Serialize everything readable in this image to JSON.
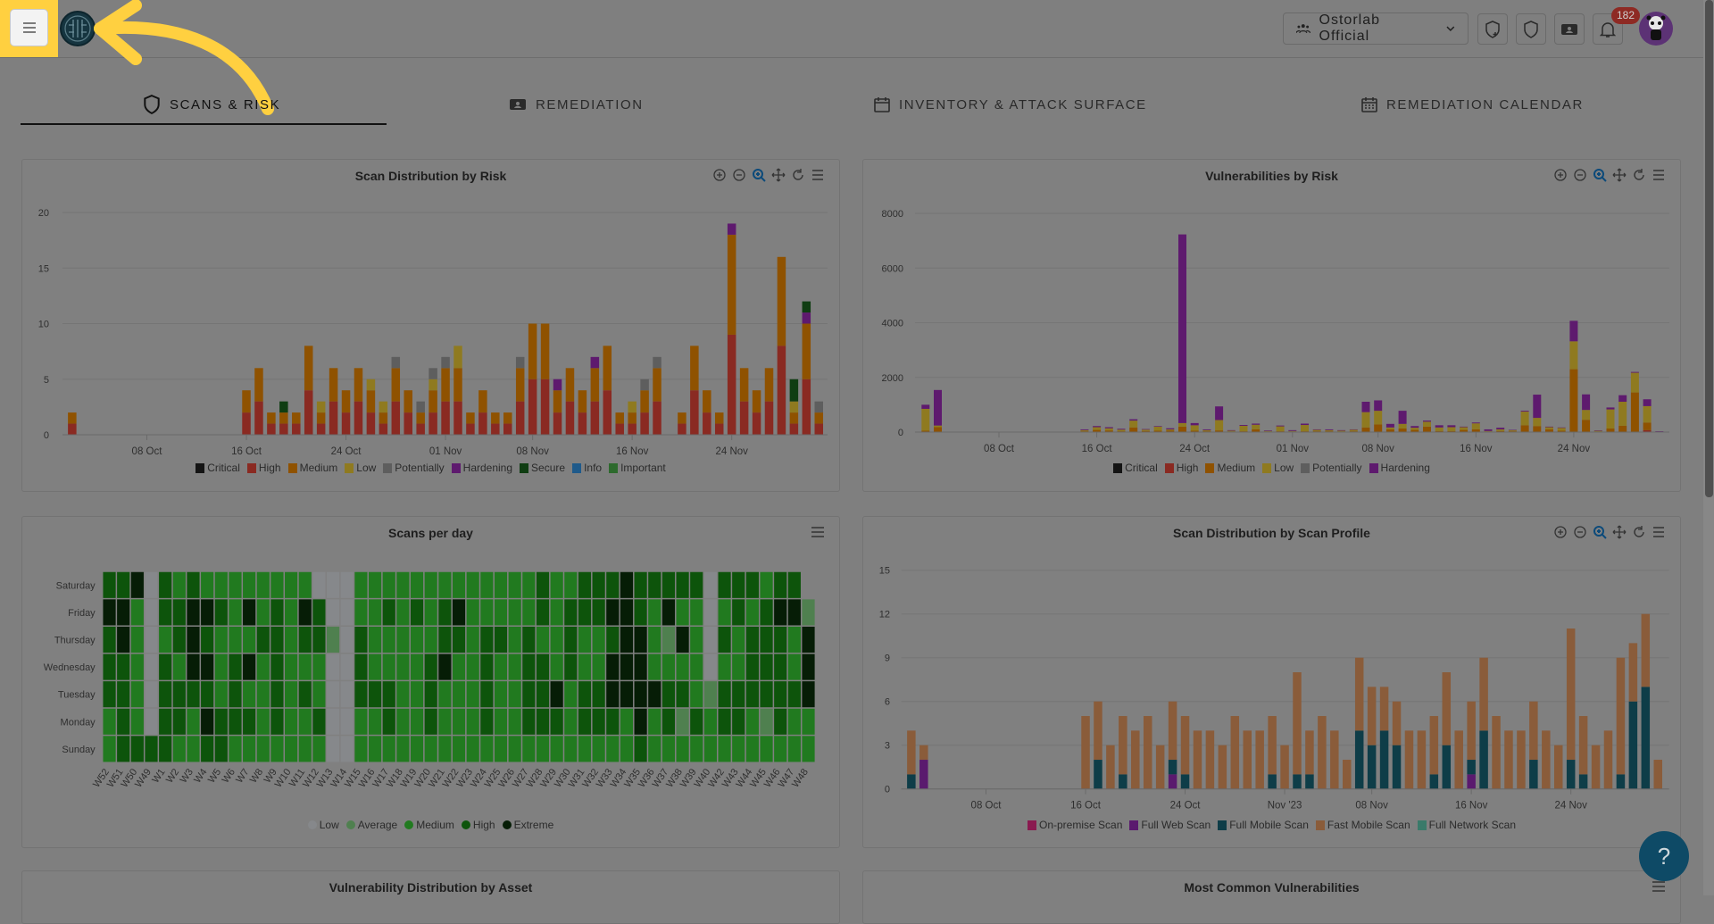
{
  "header": {
    "org_name": "Ostorlab Official",
    "notification_count": "182",
    "icons": [
      "menu-icon",
      "org-icon",
      "chevron-down-icon",
      "shield-plus-icon",
      "shield-icon",
      "ticket-icon",
      "bell-icon"
    ]
  },
  "tabs": [
    {
      "label": "SCANS & RISK",
      "icon": "shield-icon",
      "active": true
    },
    {
      "label": "REMEDIATION",
      "icon": "ticket-icon",
      "active": false
    },
    {
      "label": "INVENTORY & ATTACK SURFACE",
      "icon": "calendar-icon",
      "active": false
    },
    {
      "label": "REMEDIATION CALENDAR",
      "icon": "calendar-grid-icon",
      "active": false
    }
  ],
  "help_label": "?",
  "bottom_cards": [
    {
      "title": "Vulnerability Distribution by Asset"
    },
    {
      "title": "Most Common Vulnerabilities"
    }
  ],
  "chart_data": [
    {
      "type": "bar",
      "stacked": true,
      "title": "Scan Distribution by Risk",
      "ylim": [
        0,
        20
      ],
      "yticks": [
        0,
        5,
        10,
        15,
        20
      ],
      "xticks": [
        {
          "label": "08 Oct",
          "date": "10-08"
        },
        {
          "label": "16 Oct",
          "date": "10-16"
        },
        {
          "label": "24 Oct",
          "date": "10-24"
        },
        {
          "label": "01 Nov",
          "date": "11-01"
        },
        {
          "label": "08 Nov",
          "date": "11-08"
        },
        {
          "label": "16 Nov",
          "date": "11-16"
        },
        {
          "label": "24 Nov",
          "date": "11-24"
        }
      ],
      "dates": [
        "10-02",
        "10-16",
        "10-17",
        "10-18",
        "10-19",
        "10-20",
        "10-21",
        "10-22",
        "10-23",
        "10-24",
        "10-25",
        "10-26",
        "10-27",
        "10-28",
        "10-29",
        "10-30",
        "10-31",
        "11-01",
        "11-02",
        "11-03",
        "11-04",
        "11-05",
        "11-06",
        "11-07",
        "11-08",
        "11-09",
        "11-10",
        "11-11",
        "11-12",
        "11-13",
        "11-14",
        "11-15",
        "11-16",
        "11-17",
        "11-18",
        "11-19",
        "11-20",
        "11-21",
        "11-22",
        "11-23",
        "11-24",
        "11-25",
        "11-26",
        "11-27",
        "11-28",
        "11-29",
        "11-30",
        "12-01"
      ],
      "series": [
        {
          "name": "Critical",
          "color": "#141414"
        },
        {
          "name": "High",
          "color": "#8a2a22",
          "values": [
            1,
            2,
            3,
            1,
            1,
            1,
            4,
            1,
            3,
            2,
            3,
            2,
            1,
            3,
            2,
            1,
            2,
            3,
            3,
            1,
            2,
            1,
            1,
            3,
            5,
            5,
            2,
            3,
            2,
            3,
            4,
            1,
            1,
            2,
            3,
            0,
            1,
            4,
            2,
            1,
            9,
            3,
            2,
            3,
            8,
            1,
            5,
            1
          ]
        },
        {
          "name": "Medium",
          "color": "#8f5200",
          "values": [
            1,
            2,
            3,
            1,
            1,
            1,
            4,
            1,
            3,
            2,
            3,
            2,
            1,
            3,
            2,
            1,
            2,
            3,
            3,
            1,
            2,
            1,
            1,
            3,
            5,
            5,
            2,
            3,
            2,
            3,
            4,
            1,
            1,
            2,
            3,
            0,
            1,
            4,
            2,
            1,
            9,
            3,
            2,
            3,
            8,
            1,
            5,
            1
          ]
        },
        {
          "name": "Low",
          "color": "#8f7a20",
          "values": [
            0,
            0,
            0,
            0,
            0,
            0,
            0,
            1,
            0,
            0,
            0,
            1,
            1,
            0,
            0,
            0,
            1,
            0,
            2,
            0,
            0,
            0,
            0,
            0,
            0,
            0,
            0,
            0,
            0,
            0,
            0,
            0,
            1,
            0,
            0,
            0,
            0,
            0,
            0,
            0,
            0,
            0,
            0,
            0,
            0,
            1,
            0,
            0
          ]
        },
        {
          "name": "Potentially",
          "color": "#5e5e5e",
          "values": [
            0,
            0,
            0,
            0,
            0,
            0,
            0,
            0,
            0,
            0,
            0,
            0,
            0,
            1,
            0,
            1,
            1,
            1,
            0,
            0,
            0,
            0,
            0,
            1,
            0,
            0,
            0,
            0,
            0,
            0,
            0,
            0,
            0,
            1,
            1,
            0,
            0,
            0,
            0,
            0,
            0,
            0,
            0,
            0,
            0,
            0,
            0,
            1
          ]
        },
        {
          "name": "Hardening",
          "color": "#5e1a6e",
          "values": [
            0,
            0,
            0,
            0,
            0,
            0,
            0,
            0,
            0,
            0,
            0,
            0,
            0,
            0,
            0,
            0,
            0,
            0,
            0,
            0,
            0,
            0,
            0,
            0,
            0,
            0,
            1,
            0,
            0,
            1,
            0,
            0,
            0,
            0,
            0,
            0,
            0,
            0,
            0,
            0,
            1,
            0,
            0,
            0,
            0,
            0,
            1,
            0
          ]
        },
        {
          "name": "Secure",
          "color": "#0f3d12",
          "values": [
            0,
            0,
            0,
            0,
            1,
            0,
            0,
            0,
            0,
            0,
            0,
            0,
            0,
            0,
            0,
            0,
            0,
            0,
            0,
            0,
            0,
            0,
            0,
            0,
            0,
            0,
            0,
            0,
            0,
            0,
            0,
            0,
            0,
            0,
            0,
            0,
            0,
            0,
            0,
            0,
            0,
            0,
            0,
            0,
            0,
            2,
            1,
            0
          ]
        },
        {
          "name": "Info",
          "color": "#1f5a8a"
        },
        {
          "name": "Important",
          "color": "#2d6a2d"
        }
      ]
    },
    {
      "type": "bar",
      "stacked": true,
      "title": "Vulnerabilities by Risk",
      "ylim": [
        0,
        8000
      ],
      "yticks": [
        0,
        2000,
        4000,
        6000,
        8000
      ],
      "xticks": [
        {
          "label": "08 Oct",
          "date": "10-08"
        },
        {
          "label": "16 Oct",
          "date": "10-16"
        },
        {
          "label": "24 Oct",
          "date": "10-24"
        },
        {
          "label": "01 Nov",
          "date": "11-01"
        },
        {
          "label": "08 Nov",
          "date": "11-08"
        },
        {
          "label": "16 Nov",
          "date": "11-16"
        },
        {
          "label": "24 Nov",
          "date": "11-24"
        }
      ],
      "dates": [
        "10-02",
        "10-03",
        "10-15",
        "10-16",
        "10-17",
        "10-18",
        "10-19",
        "10-20",
        "10-21",
        "10-22",
        "10-23",
        "10-24",
        "10-25",
        "10-26",
        "10-27",
        "10-28",
        "10-29",
        "10-30",
        "10-31",
        "11-01",
        "11-02",
        "11-03",
        "11-04",
        "11-05",
        "11-06",
        "11-07",
        "11-08",
        "11-09",
        "11-10",
        "11-11",
        "11-12",
        "11-13",
        "11-14",
        "11-15",
        "11-16",
        "11-17",
        "11-18",
        "11-19",
        "11-20",
        "11-21",
        "11-22",
        "11-23",
        "11-24",
        "11-25",
        "11-26",
        "11-27",
        "11-28",
        "11-29",
        "11-30",
        "12-01"
      ],
      "series": [
        {
          "name": "Critical",
          "color": "#141414"
        },
        {
          "name": "High",
          "color": "#8a2a22",
          "values": [
            0,
            0,
            0,
            0,
            0,
            0,
            0,
            0,
            0,
            0,
            0,
            0,
            0,
            0,
            0,
            0,
            0,
            0,
            0,
            0,
            0,
            0,
            0,
            0,
            0,
            0,
            0,
            0,
            0,
            0,
            0,
            0,
            0,
            0,
            0,
            0,
            0,
            0,
            0,
            0,
            0,
            0,
            0,
            0,
            0,
            0,
            0,
            0,
            70,
            0
          ]
        },
        {
          "name": "Medium",
          "color": "#8f5200",
          "values": [
            50,
            180,
            30,
            80,
            60,
            30,
            170,
            40,
            50,
            60,
            200,
            50,
            30,
            60,
            20,
            30,
            100,
            20,
            30,
            20,
            30,
            30,
            30,
            20,
            30,
            170,
            280,
            100,
            130,
            80,
            200,
            40,
            40,
            80,
            100,
            20,
            40,
            30,
            250,
            220,
            100,
            50,
            2300,
            450,
            20,
            130,
            230,
            1450,
            280,
            10
          ]
        },
        {
          "name": "Low",
          "color": "#8f7a20",
          "values": [
            800,
            60,
            40,
            100,
            80,
            60,
            250,
            50,
            150,
            40,
            130,
            200,
            40,
            380,
            30,
            200,
            170,
            20,
            180,
            20,
            230,
            50,
            40,
            30,
            60,
            560,
            500,
            70,
            170,
            80,
            180,
            130,
            140,
            100,
            220,
            20,
            60,
            40,
            500,
            300,
            80,
            110,
            1020,
            360,
            30,
            700,
            880,
            720,
            600,
            10
          ]
        },
        {
          "name": "Potentially",
          "color": "#5e5e5e"
        },
        {
          "name": "Hardening",
          "color": "#5e1a6e",
          "values": [
            150,
            1300,
            30,
            40,
            40,
            30,
            50,
            20,
            20,
            40,
            6900,
            80,
            30,
            500,
            20,
            30,
            40,
            20,
            30,
            30,
            50,
            20,
            30,
            20,
            10,
            380,
            380,
            130,
            480,
            60,
            40,
            80,
            70,
            20,
            30,
            60,
            60,
            10,
            30,
            850,
            20,
            10,
            750,
            570,
            10,
            70,
            240,
            30,
            250,
            10
          ]
        }
      ]
    },
    {
      "type": "heatmap",
      "title": "Scans per day",
      "rows": [
        "Saturday",
        "Friday",
        "Thursday",
        "Wednesday",
        "Tuesday",
        "Monday",
        "Sunday"
      ],
      "columns": [
        "W52",
        "W51",
        "W50",
        "W49",
        "W1",
        "W2",
        "W3",
        "W4",
        "W5",
        "W6",
        "W7",
        "W8",
        "W9",
        "W10",
        "W11",
        "W12",
        "W13",
        "W14",
        "W15",
        "W16",
        "W17",
        "W18",
        "W19",
        "W20",
        "W21",
        "W22",
        "W23",
        "W24",
        "W25",
        "W26",
        "W27",
        "W28",
        "W29",
        "W30",
        "W31",
        "W32",
        "W33",
        "W34",
        "W35",
        "W36",
        "W37",
        "W38",
        "W39",
        "W40",
        "W42",
        "W43",
        "W44",
        "W45",
        "W46",
        "W47",
        "W48"
      ],
      "levels": [
        {
          "name": "Low",
          "color": "#86888b"
        },
        {
          "name": "Average",
          "color": "#4f804f"
        },
        {
          "name": "Medium",
          "color": "#217a1f"
        },
        {
          "name": "High",
          "color": "#0d540b"
        },
        {
          "name": "Extreme",
          "color": "#061d06"
        }
      ],
      "values_by_row": [
        "33403232222222200022222222222223223334333330333233-",
        "4420334432423243002232323422222323334432422023234410",
        "3420234322233233103222223323323223223442142032333240",
        "3320324423423222003222234223223323224442222022333240",
        "3320333323223232003332232223223342334444332133333340",
        "2320332433323223002232232223223332333242313233213220",
        "2333322332222222002222222222222222222232222222222220"
      ]
    },
    {
      "type": "bar",
      "stacked": true,
      "title": "Scan Distribution by Scan Profile",
      "ylim": [
        0,
        15
      ],
      "yticks": [
        0,
        3,
        6,
        9,
        12,
        15
      ],
      "xticks": [
        {
          "label": "08 Oct",
          "date": "10-08"
        },
        {
          "label": "16 Oct",
          "date": "10-16"
        },
        {
          "label": "24 Oct",
          "date": "10-24"
        },
        {
          "label": "Nov '23",
          "date": "11-01"
        },
        {
          "label": "08 Nov",
          "date": "11-08"
        },
        {
          "label": "16 Nov",
          "date": "11-16"
        },
        {
          "label": "24 Nov",
          "date": "11-24"
        }
      ],
      "dates": [
        "10-02",
        "10-03",
        "10-16",
        "10-17",
        "10-18",
        "10-19",
        "10-20",
        "10-21",
        "10-22",
        "10-23",
        "10-24",
        "10-25",
        "10-26",
        "10-27",
        "10-28",
        "10-29",
        "10-30",
        "10-31",
        "11-01",
        "11-02",
        "11-03",
        "11-04",
        "11-05",
        "11-06",
        "11-07",
        "11-08",
        "11-09",
        "11-10",
        "11-11",
        "11-12",
        "11-13",
        "11-14",
        "11-15",
        "11-16",
        "11-17",
        "11-18",
        "11-19",
        "11-20",
        "11-21",
        "11-22",
        "11-23",
        "11-24",
        "11-25",
        "11-26",
        "11-27",
        "11-28",
        "11-29",
        "11-30",
        "12-01"
      ],
      "series": [
        {
          "name": "On-premise Scan",
          "color": "#8a1a50"
        },
        {
          "name": "Full Web Scan",
          "color": "#5a1a6e",
          "values": [
            0,
            2,
            0,
            0,
            0,
            0,
            0,
            0,
            0,
            1,
            0,
            0,
            0,
            0,
            0,
            0,
            0,
            0,
            0,
            0,
            0,
            0,
            0,
            0,
            0,
            0,
            0,
            0,
            0,
            0,
            0,
            0,
            0,
            1,
            0,
            0,
            0,
            0,
            0,
            0,
            0,
            0,
            0,
            0,
            0,
            0,
            0,
            0,
            0
          ]
        },
        {
          "name": "Full Mobile Scan",
          "color": "#0e3d48",
          "values": [
            1,
            0,
            0,
            2,
            0,
            1,
            0,
            0,
            0,
            1,
            1,
            0,
            0,
            0,
            0,
            0,
            0,
            1,
            0,
            1,
            1,
            0,
            0,
            0,
            4,
            3,
            4,
            3,
            0,
            0,
            1,
            3,
            0,
            1,
            4,
            0,
            0,
            0,
            2,
            0,
            0,
            2,
            1,
            0,
            0,
            1,
            6,
            7,
            0
          ]
        },
        {
          "name": "Fast Mobile Scan",
          "color": "#8a5c3a",
          "values": [
            3,
            1,
            5,
            4,
            3,
            4,
            4,
            5,
            3,
            4,
            4,
            4,
            4,
            3,
            5,
            4,
            4,
            4,
            3,
            7,
            3,
            5,
            4,
            2,
            5,
            4,
            3,
            3,
            4,
            4,
            4,
            5,
            4,
            4,
            5,
            5,
            4,
            4,
            4,
            4,
            3,
            9,
            4,
            3,
            4,
            8,
            4,
            5,
            2
          ]
        },
        {
          "name": "Full Network Scan",
          "color": "#3a7a6a"
        }
      ]
    }
  ]
}
